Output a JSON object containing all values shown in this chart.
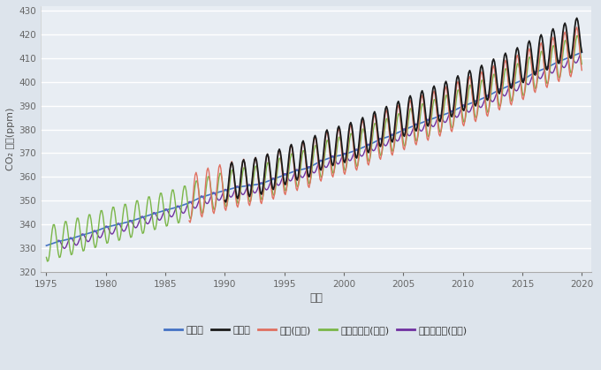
{
  "title": "",
  "xlabel": "연도",
  "ylabel": "CO₂ 농도(ppm)",
  "xlim": [
    1974.5,
    2020.8
  ],
  "ylim": [
    320,
    432
  ],
  "yticks": [
    320,
    330,
    340,
    350,
    360,
    370,
    380,
    390,
    400,
    410,
    420,
    430
  ],
  "xticks": [
    1975,
    1980,
    1985,
    1990,
    1995,
    2000,
    2005,
    2010,
    2015,
    2020
  ],
  "bg_color": "#dde4ec",
  "plot_bg_color": "#e8edf3",
  "grid_color": "#ffffff",
  "series": {
    "global": {
      "label": "전지구",
      "color": "#4472c4",
      "linewidth": 1.2
    },
    "anmyeon": {
      "label": "안면도",
      "color": "#1a1a1a",
      "linewidth": 1.3
    },
    "ryori": {
      "label": "료리(일본)",
      "color": "#e07060",
      "linewidth": 1.0
    },
    "mauna_loa": {
      "label": "마우나로아(미국)",
      "color": "#7ab648",
      "linewidth": 1.0
    },
    "cape_grim": {
      "label": "케이프그림(호주)",
      "color": "#7030a0",
      "linewidth": 1.0
    }
  },
  "co2_global": {
    "1975": 331.0,
    "1976": 332.7,
    "1977": 333.8,
    "1978": 335.4,
    "1979": 336.8,
    "1980": 338.7,
    "1981": 339.9,
    "1982": 341.1,
    "1983": 342.8,
    "1984": 344.4,
    "1985": 345.9,
    "1986": 347.2,
    "1987": 349.0,
    "1988": 351.4,
    "1989": 352.9,
    "1990": 354.2,
    "1991": 355.6,
    "1992": 356.3,
    "1993": 357.0,
    "1994": 358.9,
    "1995": 360.8,
    "1996": 362.6,
    "1997": 363.7,
    "1998": 366.5,
    "1999": 368.3,
    "2000": 369.4,
    "2001": 371.1,
    "2002": 373.2,
    "2003": 375.7,
    "2004": 377.4,
    "2005": 379.7,
    "2006": 381.8,
    "2007": 383.7,
    "2008": 385.5,
    "2009": 387.3,
    "2010": 389.8,
    "2011": 391.6,
    "2012": 393.8,
    "2013": 396.5,
    "2014": 398.6,
    "2015": 400.8,
    "2016": 403.9,
    "2017": 405.9,
    "2018": 408.5,
    "2019": 410.5,
    "2020": 412.5
  }
}
